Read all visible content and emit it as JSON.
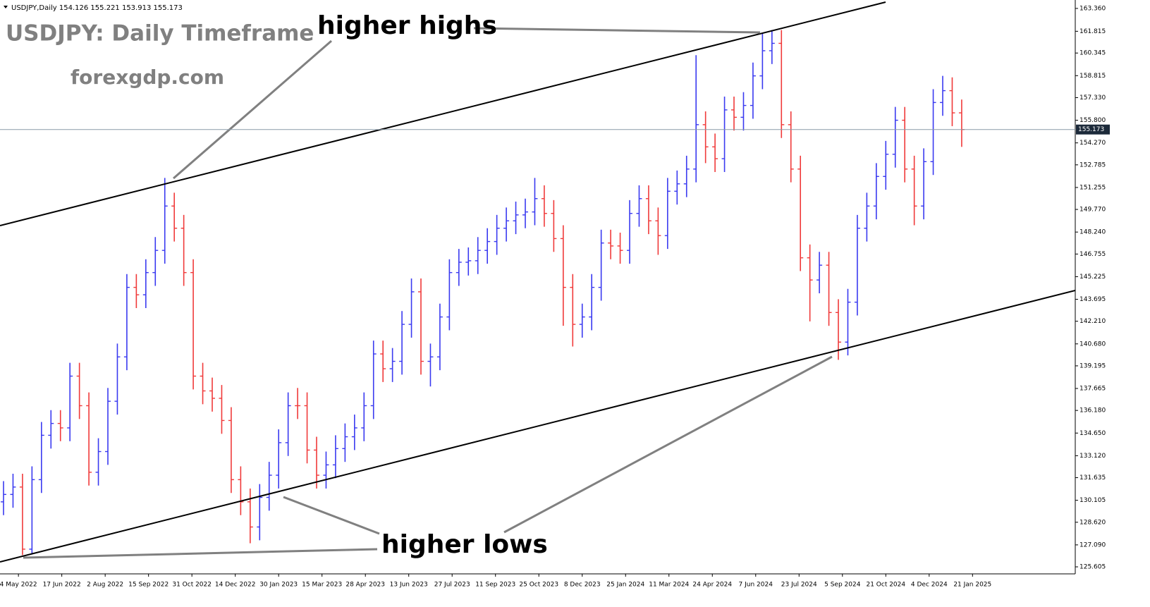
{
  "chart_data": {
    "type": "ohlc",
    "header": "USDJPY,Daily  154.126 155.221 153.913 155.173",
    "title": "USDJPY: Daily Timeframe",
    "subtitle": "forexgdp.com",
    "annotations": [
      "higher highs",
      "higher lows"
    ],
    "up_color": "#3a3af0",
    "down_color": "#f03a3a",
    "xlim": [
      -2.6,
      790.8
    ],
    "ylim": [
      125.13,
      163.93
    ],
    "xticks": [
      {
        "value": 11,
        "label": "4 May 2022"
      },
      {
        "value": 43,
        "label": "17 Jun 2022"
      },
      {
        "value": 75,
        "label": "2 Aug 2022"
      },
      {
        "value": 107,
        "label": "15 Sep 2022"
      },
      {
        "value": 139,
        "label": "31 Oct 2022"
      },
      {
        "value": 171,
        "label": "14 Dec 2022"
      },
      {
        "value": 203,
        "label": "30 Jan 2023"
      },
      {
        "value": 235,
        "label": "15 Mar 2023"
      },
      {
        "value": 267,
        "label": "28 Apr 2023"
      },
      {
        "value": 299,
        "label": "13 Jun 2023"
      },
      {
        "value": 331,
        "label": "27 Jul 2023"
      },
      {
        "value": 363,
        "label": "11 Sep 2023"
      },
      {
        "value": 395,
        "label": "25 Oct 2023"
      },
      {
        "value": 427,
        "label": "8 Dec 2023"
      },
      {
        "value": 459,
        "label": "25 Jan 2024"
      },
      {
        "value": 491,
        "label": "11 Mar 2024"
      },
      {
        "value": 523,
        "label": "24 Apr 2024"
      },
      {
        "value": 555,
        "label": "7 Jun 2024"
      },
      {
        "value": 587,
        "label": "23 Jul 2024"
      },
      {
        "value": 619,
        "label": "5 Sep 2024"
      },
      {
        "value": 651,
        "label": "21 Oct 2024"
      },
      {
        "value": 683,
        "label": "4 Dec 2024"
      },
      {
        "value": 715,
        "label": "21 Jan 2025"
      }
    ],
    "yticks": [
      {
        "value": 163.36,
        "label": "163.360"
      },
      161.815,
      160.345,
      158.815,
      {
        "value": 157.33,
        "label": "157.330"
      },
      {
        "value": 155.8,
        "label": "155.800"
      },
      {
        "value": 154.27,
        "label": "154.270"
      },
      152.785,
      151.255,
      {
        "value": 149.77,
        "label": "149.770"
      },
      {
        "value": 148.24,
        "label": "148.240"
      },
      146.755,
      145.225,
      143.695,
      {
        "value": 142.21,
        "label": "142.210"
      },
      {
        "value": 140.68,
        "label": "140.680"
      },
      139.195,
      137.665,
      {
        "value": 136.18,
        "label": "136.180"
      },
      {
        "value": 134.65,
        "label": "134.650"
      },
      {
        "value": 133.12,
        "label": "133.120"
      },
      131.635,
      130.105,
      {
        "value": 128.62,
        "label": "128.620"
      },
      {
        "value": 127.09,
        "label": "127.090"
      },
      125.605
    ],
    "x": [
      0,
      7,
      14,
      21,
      28,
      35,
      42,
      49,
      56,
      63,
      70,
      77,
      84,
      91,
      98,
      105,
      112,
      119,
      126,
      133,
      140,
      147,
      154,
      161,
      168,
      175,
      182,
      189,
      196,
      203,
      210,
      217,
      224,
      231,
      238,
      245,
      252,
      259,
      266,
      273,
      280,
      287,
      294,
      301,
      308,
      315,
      322,
      329,
      336,
      343,
      350,
      357,
      364,
      371,
      378,
      385,
      392,
      399,
      406,
      413,
      420,
      427,
      434,
      441,
      448,
      455,
      462,
      469,
      476,
      483,
      490,
      497,
      504,
      511,
      518,
      525,
      532,
      539,
      546,
      553,
      560,
      567,
      574,
      581,
      588,
      595,
      602,
      609,
      616,
      623,
      630,
      637,
      644,
      651,
      658,
      665,
      672,
      679,
      686,
      693,
      700,
      707
    ],
    "open": [
      130.0,
      130.5,
      131.0,
      126.8,
      131.5,
      134.5,
      135.3,
      135.0,
      138.5,
      136.5,
      132.0,
      133.4,
      136.8,
      139.8,
      144.5,
      144.0,
      145.5,
      147.0,
      150.0,
      148.5,
      145.5,
      138.5,
      137.5,
      137.0,
      135.5,
      131.5,
      130.0,
      128.3,
      130.3,
      131.8,
      134.0,
      136.5,
      136.5,
      133.5,
      131.8,
      132.5,
      133.6,
      134.4,
      135.0,
      136.5,
      140.0,
      139.0,
      139.5,
      142.0,
      144.2,
      139.5,
      139.8,
      142.5,
      145.5,
      146.2,
      146.3,
      147.0,
      147.6,
      148.5,
      149.0,
      149.4,
      149.6,
      150.5,
      149.5,
      147.8,
      144.5,
      142.0,
      142.5,
      144.5,
      147.5,
      147.3,
      147.0,
      149.5,
      150.5,
      149.0,
      148.0,
      151.0,
      151.5,
      152.5,
      155.5,
      154.0,
      153.2,
      156.5,
      156.0,
      156.8,
      158.8,
      160.5,
      161.0,
      155.5,
      152.5,
      146.5,
      145.0,
      146.0,
      142.8,
      140.8,
      143.5,
      148.5,
      150.0,
      152.0,
      153.5,
      155.8,
      152.5,
      150.0,
      153.0,
      157.0,
      157.8,
      156.3
    ],
    "high": [
      131.4,
      131.9,
      131.9,
      132.4,
      135.4,
      136.2,
      136.2,
      139.4,
      139.4,
      137.4,
      134.3,
      137.7,
      140.7,
      145.4,
      145.4,
      146.4,
      147.9,
      151.9,
      150.9,
      149.4,
      146.4,
      139.4,
      138.4,
      137.9,
      136.4,
      132.4,
      130.9,
      131.2,
      132.7,
      134.9,
      137.4,
      137.7,
      137.4,
      134.4,
      133.4,
      134.5,
      135.3,
      135.9,
      137.4,
      140.9,
      140.9,
      140.4,
      142.9,
      145.1,
      145.1,
      140.7,
      143.4,
      146.4,
      147.1,
      147.2,
      147.9,
      148.5,
      149.4,
      149.9,
      150.3,
      150.5,
      151.9,
      151.4,
      150.4,
      148.7,
      145.4,
      143.4,
      145.4,
      148.4,
      148.4,
      148.2,
      150.4,
      151.4,
      151.4,
      149.9,
      151.9,
      152.4,
      153.4,
      160.2,
      156.4,
      154.9,
      157.4,
      157.4,
      157.7,
      159.7,
      161.7,
      161.9,
      161.9,
      156.4,
      153.4,
      147.4,
      146.9,
      146.9,
      143.7,
      144.4,
      149.4,
      150.9,
      152.9,
      154.4,
      156.7,
      156.7,
      153.4,
      153.9,
      157.9,
      158.8,
      158.7,
      157.2
    ],
    "low": [
      129.1,
      129.6,
      126.4,
      126.5,
      130.6,
      133.6,
      134.1,
      134.1,
      135.6,
      131.1,
      131.1,
      132.5,
      135.9,
      138.9,
      143.1,
      143.1,
      144.6,
      146.1,
      147.6,
      144.6,
      137.6,
      136.6,
      136.1,
      134.6,
      130.6,
      129.1,
      127.2,
      127.4,
      129.4,
      130.9,
      133.1,
      135.6,
      132.6,
      130.9,
      130.9,
      131.6,
      132.7,
      133.5,
      134.1,
      135.6,
      138.1,
      138.1,
      138.6,
      141.1,
      138.6,
      137.8,
      138.9,
      141.6,
      144.6,
      145.3,
      145.4,
      146.1,
      146.7,
      147.6,
      148.1,
      148.5,
      148.7,
      148.6,
      146.9,
      141.9,
      140.5,
      141.1,
      141.6,
      143.6,
      146.4,
      146.1,
      146.1,
      148.6,
      148.1,
      146.7,
      147.1,
      150.1,
      150.6,
      151.6,
      152.9,
      152.3,
      152.3,
      155.1,
      155.1,
      155.9,
      157.9,
      159.6,
      154.6,
      151.6,
      145.6,
      142.2,
      144.1,
      141.9,
      139.6,
      139.9,
      142.6,
      147.6,
      149.1,
      151.1,
      152.6,
      151.6,
      148.7,
      149.1,
      152.1,
      156.1,
      155.4,
      154.0
    ],
    "close": [
      130.5,
      131.0,
      126.8,
      131.5,
      134.5,
      135.3,
      135.0,
      138.5,
      136.5,
      132.0,
      133.4,
      136.8,
      139.8,
      144.5,
      144.0,
      145.5,
      147.0,
      150.0,
      148.5,
      145.5,
      138.5,
      137.5,
      137.0,
      135.5,
      131.5,
      130.0,
      128.3,
      130.3,
      131.8,
      134.0,
      136.5,
      136.5,
      133.5,
      131.8,
      132.5,
      133.6,
      134.4,
      135.0,
      136.5,
      140.0,
      139.0,
      139.5,
      142.0,
      144.2,
      139.5,
      139.8,
      142.5,
      145.5,
      146.2,
      146.3,
      147.0,
      147.6,
      148.5,
      149.0,
      149.4,
      149.6,
      150.5,
      149.5,
      147.8,
      144.5,
      142.0,
      142.5,
      144.5,
      147.5,
      147.3,
      147.0,
      149.5,
      150.5,
      149.0,
      148.0,
      151.0,
      151.5,
      152.5,
      155.5,
      154.0,
      153.2,
      156.5,
      156.0,
      156.8,
      158.8,
      160.5,
      161.0,
      155.5,
      152.5,
      146.5,
      145.0,
      146.0,
      142.8,
      140.8,
      143.5,
      148.5,
      150.0,
      152.0,
      153.5,
      155.8,
      152.5,
      150.0,
      153.0,
      157.0,
      157.8,
      156.3,
      155.173
    ]
  }
}
